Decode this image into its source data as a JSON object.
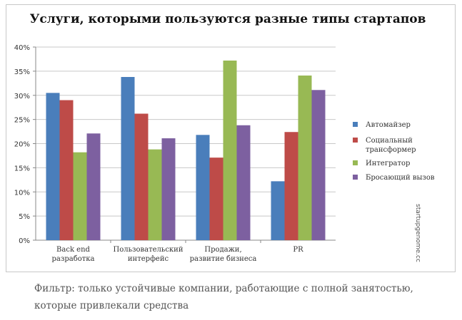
{
  "chart_data": {
    "type": "bar",
    "title": "Услуги, которыми пользуются разные типы стартапов",
    "xlabel": "",
    "ylabel": "",
    "ylim": [
      0,
      40
    ],
    "yticks": [
      "0%",
      "5%",
      "10%",
      "15%",
      "20%",
      "25%",
      "30%",
      "35%",
      "40%"
    ],
    "grid": true,
    "legend_position": "right",
    "categories": [
      [
        "Back end",
        "разработка"
      ],
      [
        "Пользовательский",
        "интерфейс"
      ],
      [
        "Продажи,",
        "развитие бизнеса"
      ],
      [
        "PR"
      ]
    ],
    "series": [
      {
        "name": [
          "Автомайзер"
        ],
        "color": "#4a7ebb",
        "values": [
          30.5,
          33.8,
          21.8,
          12.2
        ]
      },
      {
        "name": [
          "Социальный",
          "трансформер"
        ],
        "color": "#be4b48",
        "values": [
          29.0,
          26.2,
          17.1,
          22.4
        ]
      },
      {
        "name": [
          "Интегратор"
        ],
        "color": "#98b954",
        "values": [
          18.2,
          18.8,
          37.2,
          34.1
        ]
      },
      {
        "name": [
          "Бросающий вызов"
        ],
        "color": "#7d60a0",
        "values": [
          22.1,
          21.1,
          23.8,
          31.1
        ]
      }
    ]
  },
  "watermark": "startupgenome.cc",
  "footnote": "Фильтр: только устойчивые компании, работающие с полной занятостью,  которые привлекали средства"
}
